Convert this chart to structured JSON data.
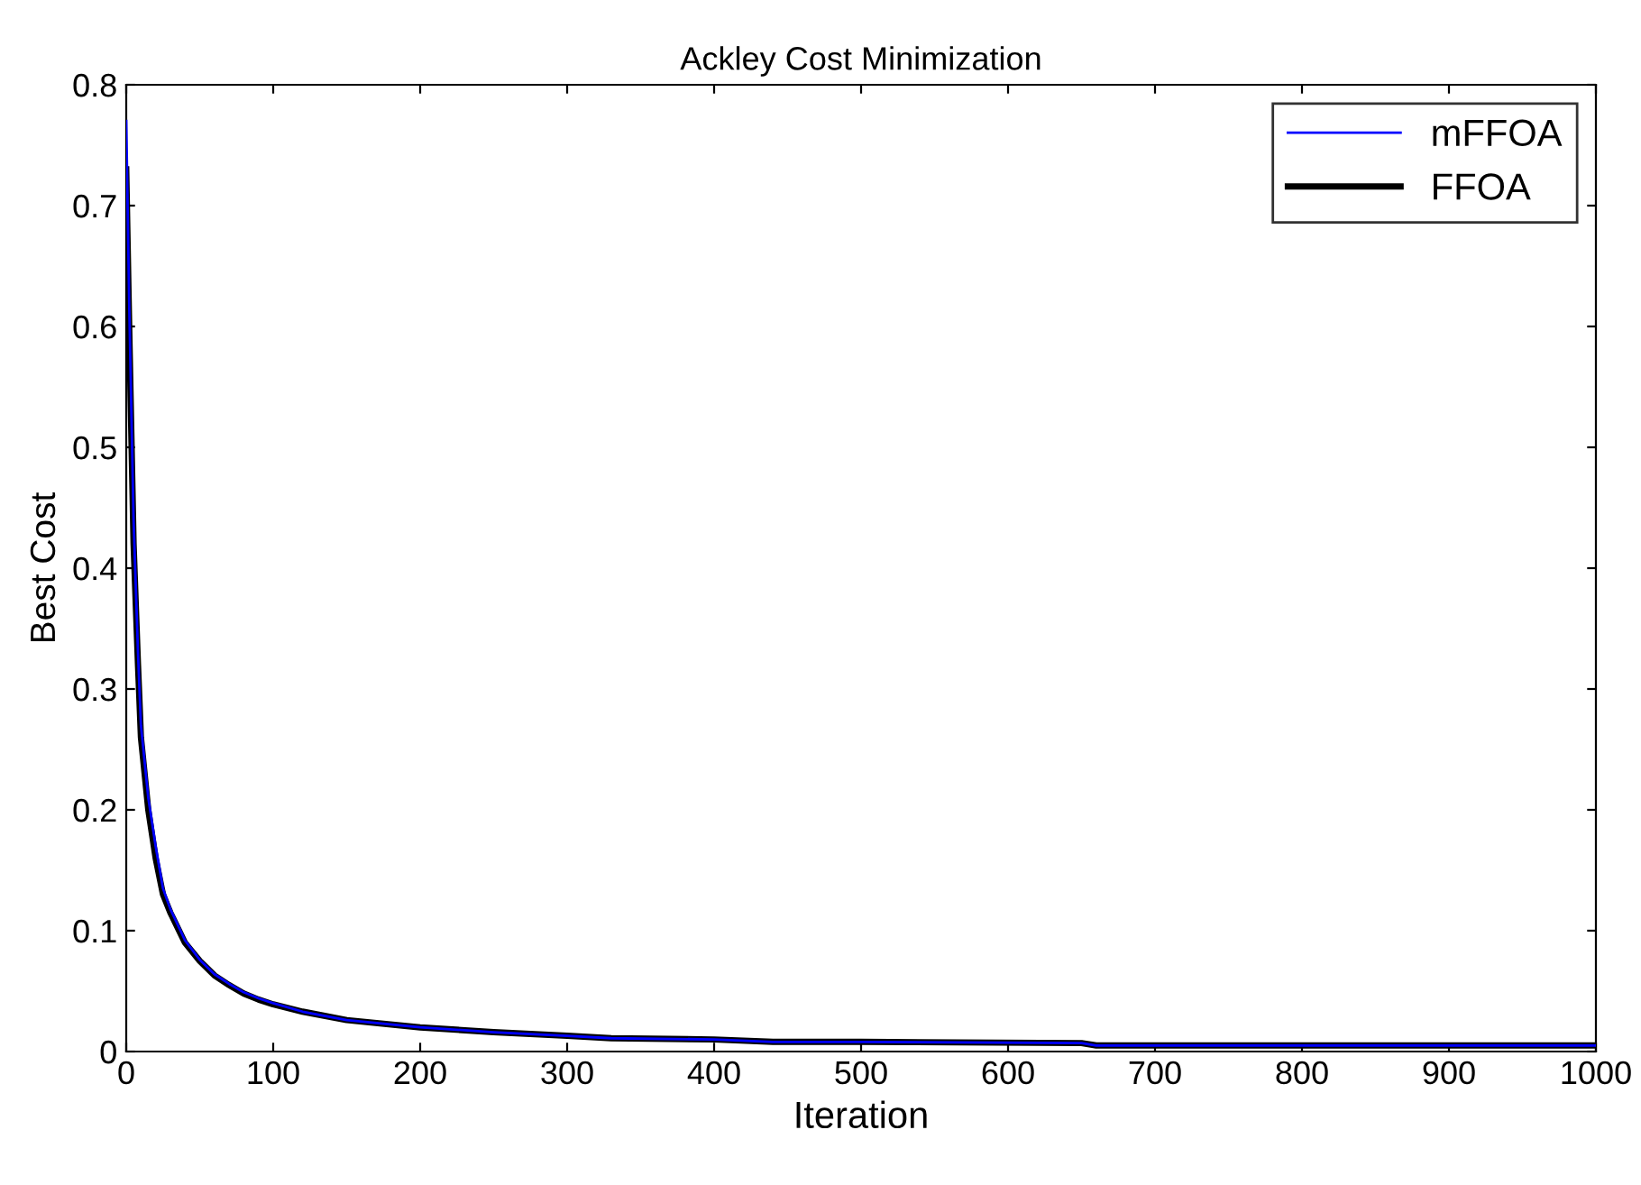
{
  "chart_data": {
    "type": "line",
    "title": "Ackley Cost Minimization",
    "xlabel": "Iteration",
    "ylabel": "Best Cost",
    "xlim": [
      0,
      1000
    ],
    "ylim": [
      0,
      0.8
    ],
    "xticks": [
      0,
      100,
      200,
      300,
      400,
      500,
      600,
      700,
      800,
      900,
      1000
    ],
    "yticks": [
      0,
      0.1,
      0.2,
      0.3,
      0.4,
      0.5,
      0.6,
      0.7,
      0.8
    ],
    "grid": false,
    "legend": "top right",
    "marker": "none",
    "line_style": "solid",
    "series": [
      {
        "name": "mFFOA",
        "color": "#0000ff",
        "x": [
          0,
          2,
          5,
          8,
          10,
          15,
          20,
          25,
          30,
          40,
          50,
          60,
          70,
          80,
          90,
          100,
          120,
          150,
          200,
          250,
          300,
          330,
          400,
          440,
          500,
          650,
          660,
          1000
        ],
        "values": [
          0.77,
          0.62,
          0.44,
          0.33,
          0.27,
          0.21,
          0.17,
          0.135,
          0.118,
          0.092,
          0.076,
          0.064,
          0.056,
          0.049,
          0.044,
          0.04,
          0.033,
          0.026,
          0.02,
          0.016,
          0.013,
          0.011,
          0.01,
          0.008,
          0.008,
          0.007,
          0.005,
          0.005
        ]
      },
      {
        "name": "FFOA",
        "color": "#000000",
        "x": [
          0,
          2,
          5,
          8,
          10,
          15,
          20,
          25,
          30,
          40,
          50,
          60,
          70,
          80,
          90,
          100,
          120,
          150,
          200,
          250,
          300,
          330,
          400,
          440,
          500,
          650,
          660,
          1000
        ],
        "values": [
          0.73,
          0.6,
          0.42,
          0.32,
          0.26,
          0.2,
          0.16,
          0.13,
          0.115,
          0.09,
          0.075,
          0.063,
          0.055,
          0.048,
          0.043,
          0.039,
          0.033,
          0.026,
          0.02,
          0.016,
          0.013,
          0.011,
          0.01,
          0.008,
          0.008,
          0.007,
          0.005,
          0.005
        ]
      }
    ]
  }
}
